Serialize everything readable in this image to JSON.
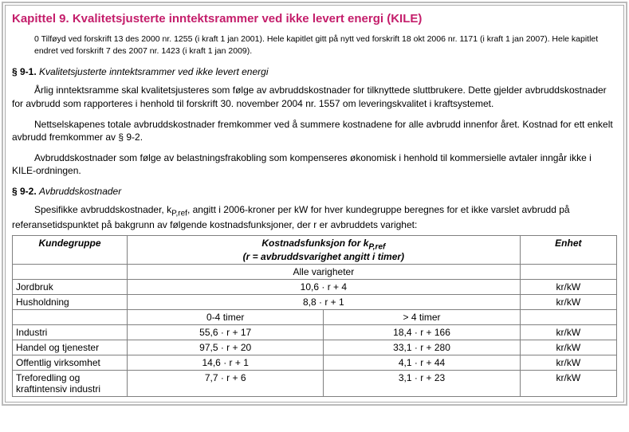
{
  "chapter": {
    "title": "Kapittel 9. Kvalitetsjusterte inntektsrammer ved ikke levert energi (KILE)"
  },
  "amend_note": "0 Tilføyd ved forskrift 13 des 2000 nr. 1255 (i kraft 1 jan 2001). Hele kapitlet gitt på nytt ved forskrift 18 okt 2006 nr. 1171 (i kraft 1 jan 2007). Hele kapitlet endret ved forskrift 7 des 2007 nr. 1423 (i kraft 1 jan 2009).",
  "s91": {
    "num": "§ 9-1.",
    "name": "Kvalitetsjusterte inntektsrammer ved ikke levert energi",
    "p1": "Årlig inntektsramme skal kvalitetsjusteres som følge av avbruddskostnader for tilknyttede sluttbrukere. Dette gjelder avbruddskostnader for avbrudd som rapporteres i henhold til forskrift 30. november 2004 nr. 1557 om leveringskvalitet i kraftsystemet.",
    "p2": "Nettselskapenes totale avbruddskostnader fremkommer ved å summere kostnadene for alle avbrudd innenfor året. Kostnad for ett enkelt avbrudd fremkommer av § 9-2.",
    "p3": "Avbruddskostnader som følge av belastningsfrakobling som kompenseres økonomisk i henhold til kommersielle avtaler inngår ikke i KILE-ordningen."
  },
  "s92": {
    "num": "§ 9-2.",
    "name": "Avbruddskostnader",
    "intro_a": "Spesifikke avbruddskostnader, k",
    "intro_sub": "P,ref",
    "intro_b": ", angitt i 2006-kroner per kW for hver kundegruppe beregnes for et ikke varslet avbrudd på referansetidspunktet på bakgrunn av følgende kostnadsfunksjoner, der r er avbruddets varighet:"
  },
  "table": {
    "head_kg": "Kundegruppe",
    "head_fn_a": "Kostnadsfunksjon for k",
    "head_fn_sub": "P,ref",
    "head_fn_b": "(r = avbruddsvarighet angitt i timer)",
    "head_unit": "Enhet",
    "sub_all": "Alle varigheter",
    "sub_0_4": "0-4 timer",
    "sub_gt4": "> 4 timer",
    "unit": "kr/kW",
    "rows_single": [
      {
        "label": "Jordbruk",
        "fn": "10,6 · r + 4"
      },
      {
        "label": "Husholdning",
        "fn": "8,8 · r + 1"
      }
    ],
    "rows_split": [
      {
        "label": "Industri",
        "f1": "55,6 · r + 17",
        "f2": "18,4 · r + 166"
      },
      {
        "label": "Handel og tjenester",
        "f1": "97,5 · r + 20",
        "f2": "33,1 · r + 280"
      },
      {
        "label": "Offentlig virksomhet",
        "f1": "14,6 · r + 1",
        "f2": "4,1 · r + 44"
      },
      {
        "label": "Treforedling og kraftintensiv industri",
        "f1": "7,7 · r + 6",
        "f2": "3,1 · r + 23"
      }
    ]
  }
}
